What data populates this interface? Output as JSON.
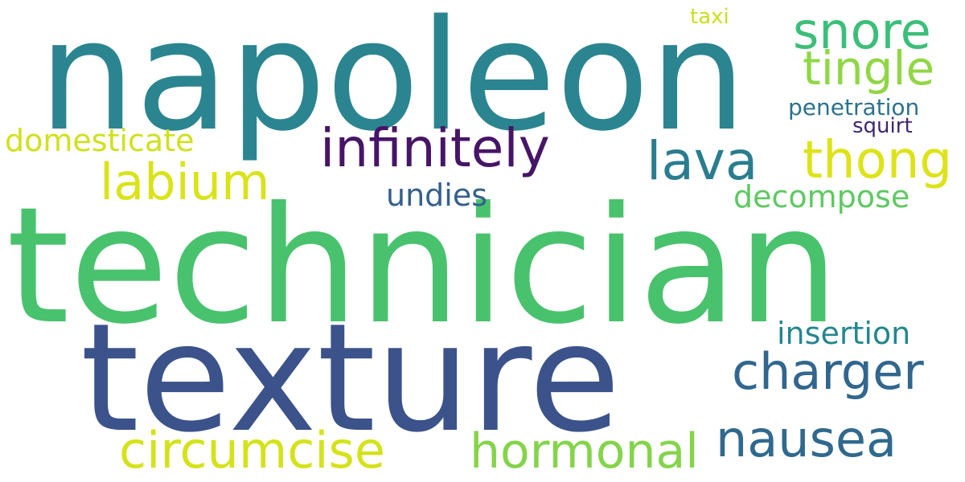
{
  "words": {
    "napoleon": {
      "text": "napoleon",
      "color": "#2b8590"
    },
    "technician": {
      "text": "technician",
      "color": "#49c26d"
    },
    "texture": {
      "text": "texture",
      "color": "#3b528b"
    },
    "infinitely": {
      "text": "infinitely",
      "color": "#471567"
    },
    "snore": {
      "text": "snore",
      "color": "#3bbf78"
    },
    "tingle": {
      "text": "tingle",
      "color": "#8fd744"
    },
    "taxi": {
      "text": "taxi",
      "color": "#c8e020"
    },
    "penetration": {
      "text": "penetration",
      "color": "#2c728e"
    },
    "squirt": {
      "text": "squirt",
      "color": "#3f2770"
    },
    "thong": {
      "text": "thong",
      "color": "#dde318"
    },
    "lava": {
      "text": "lava",
      "color": "#2a7d8e"
    },
    "domesticate": {
      "text": "domesticate",
      "color": "#d0e11c"
    },
    "labium": {
      "text": "labium",
      "color": "#dae319"
    },
    "undies": {
      "text": "undies",
      "color": "#355f8d"
    },
    "decompose": {
      "text": "decompose",
      "color": "#5ec962"
    },
    "insertion": {
      "text": "insertion",
      "color": "#24878e"
    },
    "charger": {
      "text": "charger",
      "color": "#31668e"
    },
    "nausea": {
      "text": "nausea",
      "color": "#30698e"
    },
    "hormonal": {
      "text": "hormonal",
      "color": "#84d44b"
    },
    "circumcise": {
      "text": "circumcise",
      "color": "#d5e21a"
    }
  }
}
